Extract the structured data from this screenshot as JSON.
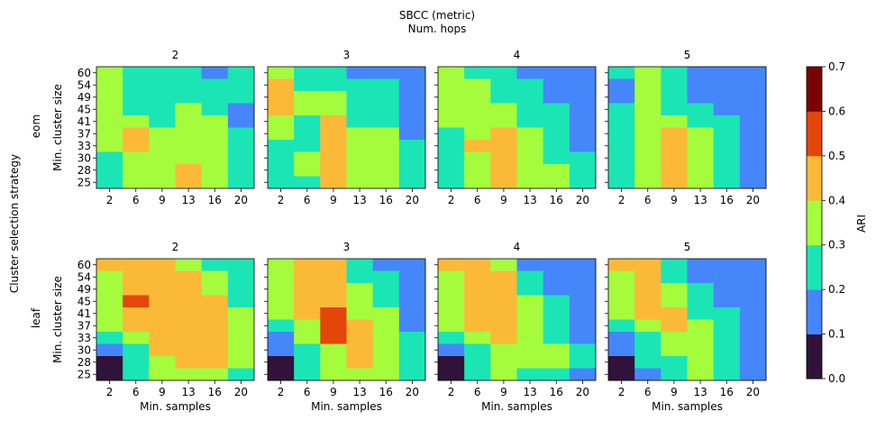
{
  "chart_data": {
    "type": "heatmap",
    "title": "SBCC (metric)",
    "subtitle": "Num. hops",
    "row_group_label": "Cluster selection strategy",
    "rows": [
      "eom",
      "leaf"
    ],
    "cols": [
      "2",
      "3",
      "4",
      "5"
    ],
    "xlabel": "Min. samples",
    "ylabel": "Min. cluster size",
    "x_ticks": [
      "2",
      "6",
      "9",
      "13",
      "16",
      "20"
    ],
    "y_ticks": [
      "60",
      "54",
      "49",
      "45",
      "41",
      "37",
      "33",
      "30",
      "28",
      "25"
    ],
    "colorbar": {
      "label": "ARI",
      "ticks": [
        "0.0",
        "0.1",
        "0.2",
        "0.3",
        "0.4",
        "0.5",
        "0.6",
        "0.7"
      ],
      "bins": [
        {
          "lo": 0.0,
          "hi": 0.1,
          "color": "#30123b"
        },
        {
          "lo": 0.1,
          "hi": 0.2,
          "color": "#4686fb"
        },
        {
          "lo": 0.2,
          "hi": 0.3,
          "color": "#1be5b5"
        },
        {
          "lo": 0.3,
          "hi": 0.4,
          "color": "#a4fc3c"
        },
        {
          "lo": 0.4,
          "hi": 0.5,
          "color": "#fbb938"
        },
        {
          "lo": 0.5,
          "hi": 0.6,
          "color": "#e4460a"
        },
        {
          "lo": 0.6,
          "hi": 0.7,
          "color": "#7a0403"
        }
      ]
    },
    "panels": [
      {
        "row": "eom",
        "col": "2",
        "values": [
          [
            0.35,
            0.25,
            0.25,
            0.25,
            0.15,
            0.25
          ],
          [
            0.35,
            0.25,
            0.25,
            0.25,
            0.25,
            0.25
          ],
          [
            0.35,
            0.25,
            0.25,
            0.25,
            0.25,
            0.25
          ],
          [
            0.35,
            0.25,
            0.25,
            0.35,
            0.25,
            0.15
          ],
          [
            0.35,
            0.35,
            0.25,
            0.35,
            0.35,
            0.15
          ],
          [
            0.35,
            0.45,
            0.35,
            0.35,
            0.35,
            0.25
          ],
          [
            0.35,
            0.45,
            0.35,
            0.35,
            0.35,
            0.25
          ],
          [
            0.25,
            0.35,
            0.35,
            0.35,
            0.35,
            0.25
          ],
          [
            0.25,
            0.35,
            0.35,
            0.45,
            0.35,
            0.25
          ],
          [
            0.25,
            0.35,
            0.35,
            0.45,
            0.35,
            0.25
          ]
        ]
      },
      {
        "row": "eom",
        "col": "3",
        "values": [
          [
            0.35,
            0.25,
            0.25,
            0.15,
            0.15,
            0.15
          ],
          [
            0.45,
            0.25,
            0.25,
            0.25,
            0.25,
            0.15
          ],
          [
            0.45,
            0.35,
            0.35,
            0.25,
            0.25,
            0.15
          ],
          [
            0.45,
            0.35,
            0.35,
            0.25,
            0.25,
            0.15
          ],
          [
            0.35,
            0.25,
            0.45,
            0.25,
            0.25,
            0.15
          ],
          [
            0.35,
            0.25,
            0.45,
            0.35,
            0.35,
            0.15
          ],
          [
            0.25,
            0.25,
            0.45,
            0.35,
            0.35,
            0.25
          ],
          [
            0.25,
            0.35,
            0.45,
            0.35,
            0.35,
            0.25
          ],
          [
            0.25,
            0.35,
            0.45,
            0.35,
            0.35,
            0.25
          ],
          [
            0.25,
            0.25,
            0.45,
            0.35,
            0.35,
            0.25
          ]
        ]
      },
      {
        "row": "eom",
        "col": "4",
        "values": [
          [
            0.35,
            0.25,
            0.25,
            0.15,
            0.15,
            0.15
          ],
          [
            0.35,
            0.35,
            0.25,
            0.25,
            0.15,
            0.15
          ],
          [
            0.35,
            0.35,
            0.25,
            0.25,
            0.15,
            0.15
          ],
          [
            0.35,
            0.35,
            0.35,
            0.25,
            0.25,
            0.15
          ],
          [
            0.35,
            0.35,
            0.35,
            0.25,
            0.25,
            0.15
          ],
          [
            0.25,
            0.35,
            0.45,
            0.35,
            0.25,
            0.15
          ],
          [
            0.25,
            0.45,
            0.45,
            0.35,
            0.25,
            0.15
          ],
          [
            0.25,
            0.35,
            0.45,
            0.35,
            0.25,
            0.25
          ],
          [
            0.25,
            0.35,
            0.45,
            0.35,
            0.35,
            0.25
          ],
          [
            0.25,
            0.35,
            0.45,
            0.35,
            0.35,
            0.25
          ]
        ]
      },
      {
        "row": "eom",
        "col": "5",
        "values": [
          [
            0.25,
            0.35,
            0.25,
            0.15,
            0.15,
            0.15
          ],
          [
            0.15,
            0.35,
            0.25,
            0.15,
            0.15,
            0.15
          ],
          [
            0.15,
            0.35,
            0.25,
            0.15,
            0.15,
            0.15
          ],
          [
            0.25,
            0.35,
            0.25,
            0.25,
            0.15,
            0.15
          ],
          [
            0.25,
            0.35,
            0.35,
            0.25,
            0.25,
            0.15
          ],
          [
            0.25,
            0.35,
            0.45,
            0.35,
            0.25,
            0.15
          ],
          [
            0.25,
            0.35,
            0.45,
            0.35,
            0.25,
            0.15
          ],
          [
            0.25,
            0.35,
            0.45,
            0.35,
            0.25,
            0.15
          ],
          [
            0.25,
            0.35,
            0.45,
            0.35,
            0.25,
            0.15
          ],
          [
            0.25,
            0.35,
            0.45,
            0.35,
            0.25,
            0.15
          ]
        ]
      },
      {
        "row": "leaf",
        "col": "2",
        "values": [
          [
            0.45,
            0.45,
            0.45,
            0.35,
            0.25,
            0.25
          ],
          [
            0.35,
            0.45,
            0.45,
            0.45,
            0.35,
            0.25
          ],
          [
            0.35,
            0.45,
            0.45,
            0.45,
            0.35,
            0.25
          ],
          [
            0.35,
            0.55,
            0.45,
            0.45,
            0.45,
            0.25
          ],
          [
            0.35,
            0.45,
            0.45,
            0.45,
            0.45,
            0.35
          ],
          [
            0.35,
            0.45,
            0.45,
            0.45,
            0.45,
            0.35
          ],
          [
            0.25,
            0.35,
            0.45,
            0.45,
            0.45,
            0.35
          ],
          [
            0.15,
            0.25,
            0.45,
            0.45,
            0.45,
            0.35
          ],
          [
            0.05,
            0.25,
            0.35,
            0.45,
            0.45,
            0.35
          ],
          [
            0.05,
            0.25,
            0.35,
            0.35,
            0.35,
            0.25
          ]
        ]
      },
      {
        "row": "leaf",
        "col": "3",
        "values": [
          [
            0.35,
            0.45,
            0.45,
            0.25,
            0.15,
            0.15
          ],
          [
            0.35,
            0.45,
            0.45,
            0.25,
            0.25,
            0.15
          ],
          [
            0.35,
            0.45,
            0.45,
            0.35,
            0.25,
            0.15
          ],
          [
            0.35,
            0.45,
            0.45,
            0.35,
            0.25,
            0.15
          ],
          [
            0.35,
            0.45,
            0.55,
            0.35,
            0.35,
            0.15
          ],
          [
            0.25,
            0.35,
            0.55,
            0.45,
            0.35,
            0.15
          ],
          [
            0.15,
            0.35,
            0.55,
            0.45,
            0.35,
            0.25
          ],
          [
            0.15,
            0.25,
            0.35,
            0.45,
            0.35,
            0.25
          ],
          [
            0.05,
            0.25,
            0.35,
            0.45,
            0.35,
            0.25
          ],
          [
            0.05,
            0.25,
            0.35,
            0.35,
            0.35,
            0.25
          ]
        ]
      },
      {
        "row": "leaf",
        "col": "4",
        "values": [
          [
            0.45,
            0.45,
            0.35,
            0.15,
            0.15,
            0.15
          ],
          [
            0.35,
            0.45,
            0.45,
            0.25,
            0.15,
            0.15
          ],
          [
            0.35,
            0.45,
            0.45,
            0.25,
            0.15,
            0.15
          ],
          [
            0.35,
            0.45,
            0.45,
            0.35,
            0.25,
            0.15
          ],
          [
            0.35,
            0.45,
            0.45,
            0.35,
            0.25,
            0.15
          ],
          [
            0.35,
            0.45,
            0.45,
            0.35,
            0.25,
            0.15
          ],
          [
            0.25,
            0.35,
            0.45,
            0.35,
            0.25,
            0.15
          ],
          [
            0.15,
            0.25,
            0.35,
            0.35,
            0.35,
            0.25
          ],
          [
            0.05,
            0.25,
            0.35,
            0.35,
            0.35,
            0.25
          ],
          [
            0.05,
            0.25,
            0.35,
            0.25,
            0.25,
            0.15
          ]
        ]
      },
      {
        "row": "leaf",
        "col": "5",
        "values": [
          [
            0.45,
            0.45,
            0.25,
            0.15,
            0.15,
            0.15
          ],
          [
            0.35,
            0.45,
            0.25,
            0.15,
            0.15,
            0.15
          ],
          [
            0.35,
            0.45,
            0.35,
            0.25,
            0.15,
            0.15
          ],
          [
            0.35,
            0.45,
            0.35,
            0.25,
            0.15,
            0.15
          ],
          [
            0.35,
            0.45,
            0.45,
            0.25,
            0.25,
            0.15
          ],
          [
            0.25,
            0.35,
            0.45,
            0.35,
            0.25,
            0.15
          ],
          [
            0.15,
            0.25,
            0.35,
            0.35,
            0.25,
            0.15
          ],
          [
            0.15,
            0.25,
            0.35,
            0.35,
            0.25,
            0.15
          ],
          [
            0.05,
            0.25,
            0.25,
            0.35,
            0.25,
            0.15
          ],
          [
            0.05,
            0.15,
            0.25,
            0.35,
            0.25,
            0.15
          ]
        ]
      }
    ]
  }
}
